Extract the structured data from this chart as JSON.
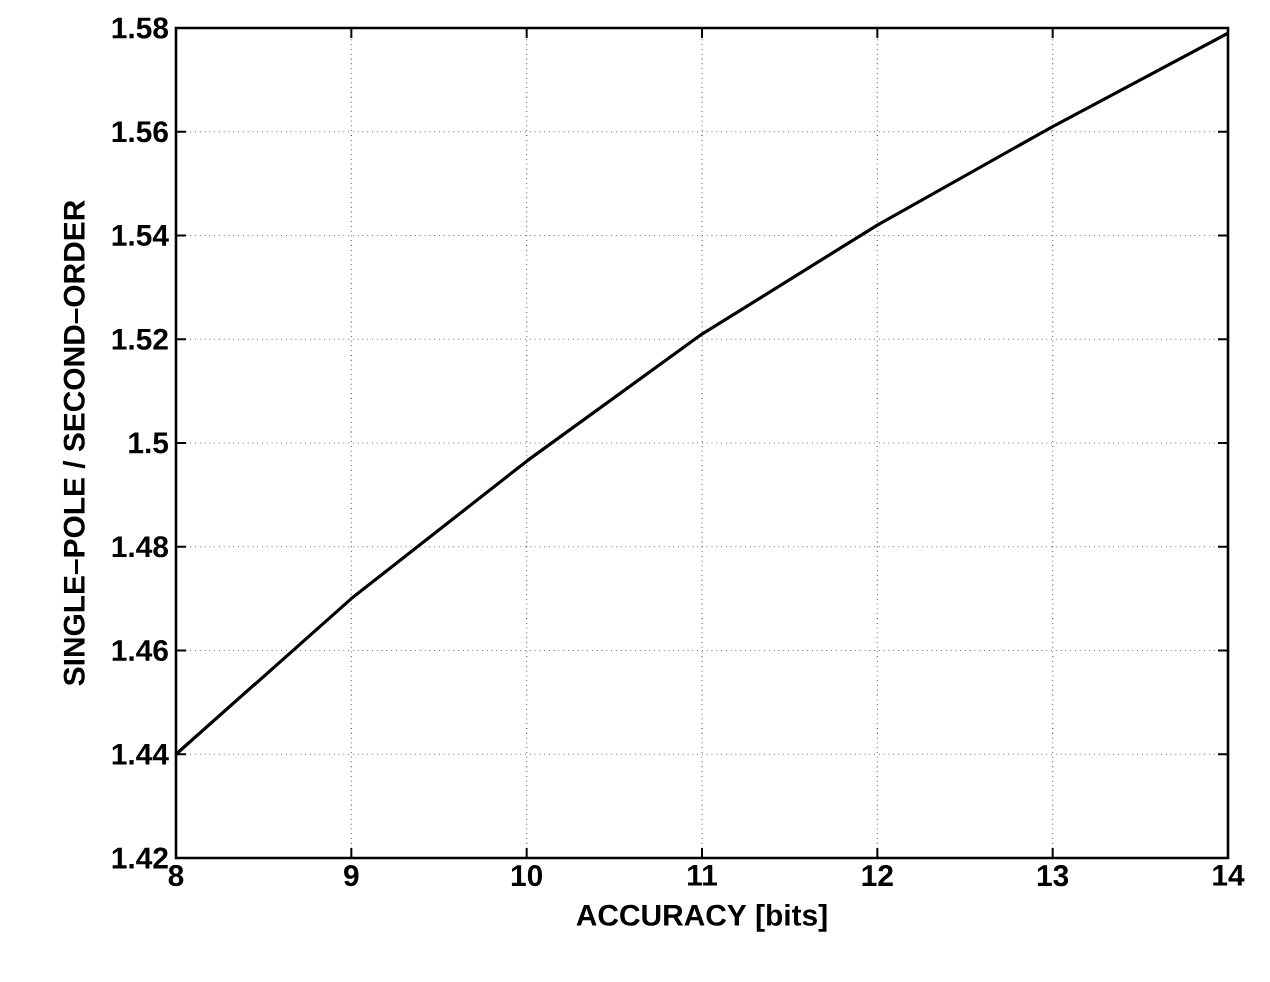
{
  "chart_data": {
    "type": "line",
    "xlabel": "ACCURACY [bits]",
    "ylabel": "SINGLE–POLE / SECOND–ORDER",
    "x": [
      8,
      9,
      10,
      11,
      12,
      13,
      14
    ],
    "series": [
      {
        "color": "#000000",
        "values": [
          1.44,
          1.47,
          1.4965,
          1.521,
          1.542,
          1.561,
          1.579
        ]
      }
    ],
    "xlim": [
      8,
      14
    ],
    "ylim": [
      1.42,
      1.58
    ],
    "xticks": [
      8,
      9,
      10,
      11,
      12,
      13,
      14
    ],
    "yticks": [
      1.42,
      1.44,
      1.46,
      1.48,
      1.5,
      1.52,
      1.54,
      1.56,
      1.58
    ],
    "grid": true,
    "line_style": "solid"
  }
}
